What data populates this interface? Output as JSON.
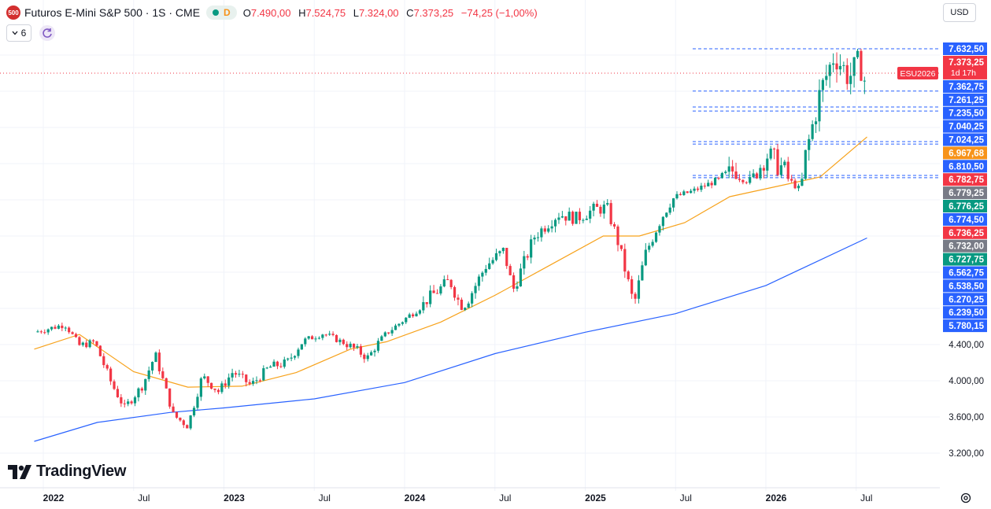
{
  "header": {
    "symbol_badge": "500",
    "title": "Futuros E-Mini S&P 500 · 1S · CME",
    "interval_badge": "D",
    "ohlc": {
      "o_label": "O",
      "o": "7.490,00",
      "h_label": "H",
      "h": "7.524,75",
      "l_label": "L",
      "l": "7.324,00",
      "c_label": "C",
      "c": "7.373,25",
      "change": "−74,25 (−1,00%)"
    }
  },
  "indicators_toggle": {
    "count": "6"
  },
  "currency": "USD",
  "logo_text": "TradingView",
  "colors": {
    "up": "#089981",
    "down": "#f23645",
    "ma_fast": "#f7a21b",
    "ma_slow": "#2962ff",
    "grid": "#f0f3fa",
    "last_price": "#f23645"
  },
  "chart_data": {
    "type": "candlestick",
    "title": "Futuros E-Mini S&P 500 · 1S · CME",
    "symbol": "ESU2026",
    "countdown": "1d 17h",
    "x_tick_labels": [
      "2022",
      "Jul",
      "2023",
      "Jul",
      "2024",
      "Jul",
      "2025",
      "Jul",
      "2026",
      "Jul"
    ],
    "y_ticks": [
      "3.200,00",
      "3.600,00",
      "4.000,00",
      "4.400,00"
    ],
    "last_price": "7.373,25",
    "price_labels": [
      {
        "text": "7.632,50",
        "value": 7632.5,
        "color": "#2962ff"
      },
      {
        "text": "7.373,25",
        "value": 7373.25,
        "color": "#f23645"
      },
      {
        "text": "7.362,75",
        "value": 7362.75,
        "color": "#2962ff"
      },
      {
        "text": "7.261,25",
        "value": 7261.25,
        "color": "#2962ff"
      },
      {
        "text": "7.235,50",
        "value": 7235.5,
        "color": "#2962ff"
      },
      {
        "text": "7.040,25",
        "value": 7040.25,
        "color": "#2962ff"
      },
      {
        "text": "7.024,25",
        "value": 7024.25,
        "color": "#2962ff"
      },
      {
        "text": "6.967,68",
        "value": 6967.68,
        "color": "#f7931a"
      },
      {
        "text": "6.810,50",
        "value": 6810.5,
        "color": "#2962ff"
      },
      {
        "text": "6.782,75",
        "value": 6782.75,
        "color": "#f23645"
      },
      {
        "text": "6.779,25",
        "value": 6779.25,
        "color": "#787b86"
      },
      {
        "text": "6.776,25",
        "value": 6776.25,
        "color": "#089981"
      },
      {
        "text": "6.774,50",
        "value": 6774.5,
        "color": "#2962ff"
      },
      {
        "text": "6.736,25",
        "value": 6736.25,
        "color": "#f23645"
      },
      {
        "text": "6.732,00",
        "value": 6732.0,
        "color": "#787b86"
      },
      {
        "text": "6.727,75",
        "value": 6727.75,
        "color": "#089981"
      },
      {
        "text": "6.562,75",
        "value": 6562.75,
        "color": "#2962ff"
      },
      {
        "text": "6.538,50",
        "value": 6538.5,
        "color": "#2962ff"
      },
      {
        "text": "6.270,25",
        "value": 6270.25,
        "color": "#2962ff"
      },
      {
        "text": "6.239,50",
        "value": 6239.5,
        "color": "#2962ff"
      },
      {
        "text": "5.780,15",
        "value": 5780.15,
        "color": "#2962ff"
      }
    ],
    "dashed_levels": [
      7632.5,
      7362.75,
      7261.25,
      7235.5,
      7040.25,
      7024.25,
      6810.5,
      6782.75
    ],
    "price_path": [
      {
        "t": 2021.95,
        "p": 4620
      },
      {
        "t": 2022.05,
        "p": 4700
      },
      {
        "t": 2022.12,
        "p": 4760
      },
      {
        "t": 2022.2,
        "p": 4390
      },
      {
        "t": 2022.28,
        "p": 4450
      },
      {
        "t": 2022.38,
        "p": 3960
      },
      {
        "t": 2022.45,
        "p": 3700
      },
      {
        "t": 2022.55,
        "p": 3950
      },
      {
        "t": 2022.62,
        "p": 4290
      },
      {
        "t": 2022.72,
        "p": 3620
      },
      {
        "t": 2022.8,
        "p": 3500
      },
      {
        "t": 2022.88,
        "p": 4050
      },
      {
        "t": 2022.97,
        "p": 3880
      },
      {
        "t": 2023.05,
        "p": 4100
      },
      {
        "t": 2023.15,
        "p": 3950
      },
      {
        "t": 2023.25,
        "p": 4150
      },
      {
        "t": 2023.35,
        "p": 4200
      },
      {
        "t": 2023.45,
        "p": 4480
      },
      {
        "t": 2023.55,
        "p": 4600
      },
      {
        "t": 2023.65,
        "p": 4450
      },
      {
        "t": 2023.8,
        "p": 4250
      },
      {
        "t": 2023.9,
        "p": 4600
      },
      {
        "t": 2024.0,
        "p": 4850
      },
      {
        "t": 2024.12,
        "p": 5150
      },
      {
        "t": 2024.25,
        "p": 5350
      },
      {
        "t": 2024.32,
        "p": 5050
      },
      {
        "t": 2024.45,
        "p": 5500
      },
      {
        "t": 2024.55,
        "p": 5650
      },
      {
        "t": 2024.6,
        "p": 5250
      },
      {
        "t": 2024.72,
        "p": 5800
      },
      {
        "t": 2024.85,
        "p": 6050
      },
      {
        "t": 2024.95,
        "p": 6000
      },
      {
        "t": 2025.05,
        "p": 6100
      },
      {
        "t": 2025.12,
        "p": 6120
      },
      {
        "t": 2025.18,
        "p": 5750
      },
      {
        "t": 2025.27,
        "p": 5100
      },
      {
        "t": 2025.33,
        "p": 5600
      },
      {
        "t": 2025.42,
        "p": 6000
      },
      {
        "t": 2025.5,
        "p": 6300
      },
      {
        "t": 2025.6,
        "p": 6450
      },
      {
        "t": 2025.72,
        "p": 6700
      },
      {
        "t": 2025.82,
        "p": 6850
      },
      {
        "t": 2025.9,
        "p": 6700
      },
      {
        "t": 2026.0,
        "p": 6960
      },
      {
        "t": 2026.1,
        "p": 6850
      },
      {
        "t": 2026.18,
        "p": 6500
      },
      {
        "t": 2026.22,
        "p": 6950
      },
      {
        "t": 2026.3,
        "p": 7350
      },
      {
        "t": 2026.38,
        "p": 7600
      },
      {
        "t": 2026.46,
        "p": 7450
      },
      {
        "t": 2026.52,
        "p": 7550
      },
      {
        "t": 2026.56,
        "p": 7373
      }
    ],
    "ma_fast": [
      {
        "t": 2021.95,
        "p": 4350
      },
      {
        "t": 2022.2,
        "p": 4580
      },
      {
        "t": 2022.5,
        "p": 4100
      },
      {
        "t": 2022.8,
        "p": 3930
      },
      {
        "t": 2023.1,
        "p": 3940
      },
      {
        "t": 2023.4,
        "p": 4090
      },
      {
        "t": 2023.7,
        "p": 4350
      },
      {
        "t": 2023.9,
        "p": 4450
      },
      {
        "t": 2024.2,
        "p": 4800
      },
      {
        "t": 2024.5,
        "p": 5200
      },
      {
        "t": 2024.8,
        "p": 5500
      },
      {
        "t": 2025.1,
        "p": 5800
      },
      {
        "t": 2025.3,
        "p": 5800
      },
      {
        "t": 2025.55,
        "p": 5950
      },
      {
        "t": 2025.8,
        "p": 6300
      },
      {
        "t": 2026.1,
        "p": 6600
      },
      {
        "t": 2026.3,
        "p": 6800
      },
      {
        "t": 2026.56,
        "p": 7070
      }
    ],
    "ma_slow": [
      {
        "t": 2021.95,
        "p": 3330
      },
      {
        "t": 2022.3,
        "p": 3540
      },
      {
        "t": 2022.7,
        "p": 3650
      },
      {
        "t": 2023.0,
        "p": 3700
      },
      {
        "t": 2023.5,
        "p": 3800
      },
      {
        "t": 2024.0,
        "p": 3980
      },
      {
        "t": 2024.5,
        "p": 4300
      },
      {
        "t": 2025.0,
        "p": 4620
      },
      {
        "t": 2025.5,
        "p": 4950
      },
      {
        "t": 2026.0,
        "p": 5300
      },
      {
        "t": 2026.56,
        "p": 5780
      }
    ]
  }
}
